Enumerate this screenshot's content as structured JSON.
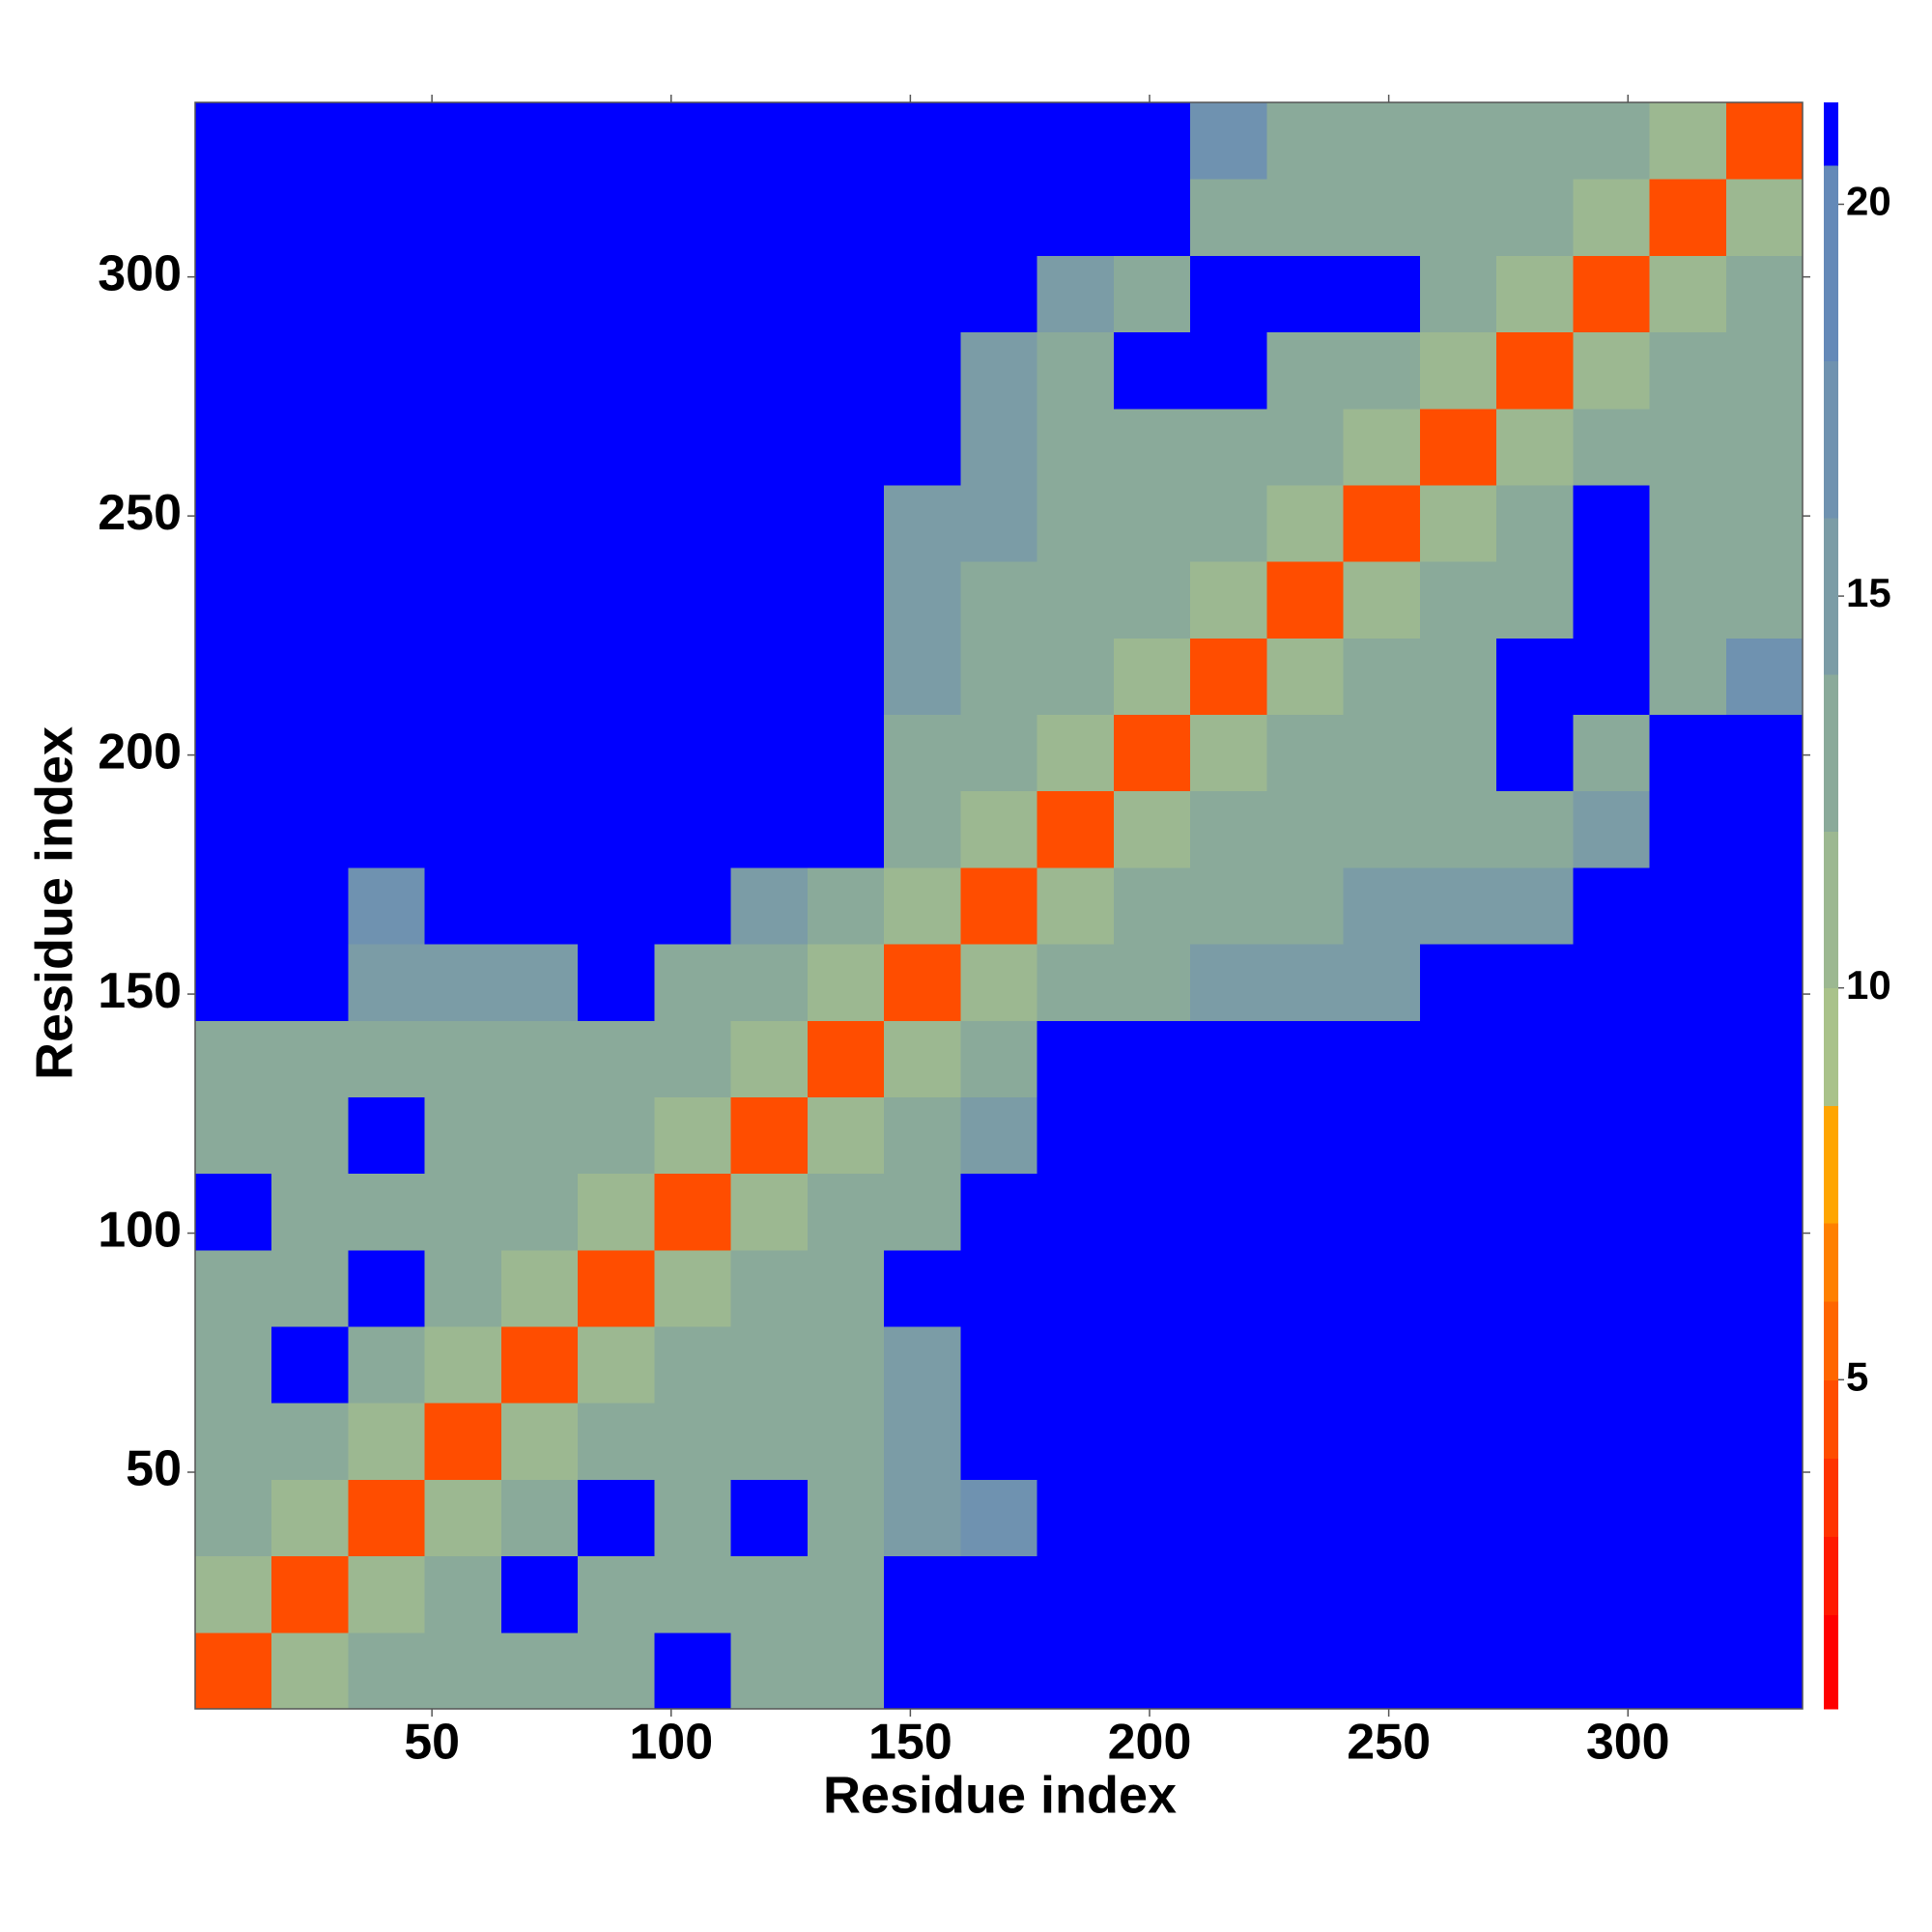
{
  "chart_data": {
    "type": "heatmap",
    "xlabel": "Residue index",
    "ylabel": "Residue index",
    "xlim": [
      0.5,
      336.5
    ],
    "ylim": [
      0.5,
      336.5
    ],
    "xticks": [
      50,
      100,
      150,
      200,
      250,
      300
    ],
    "yticks": [
      50,
      100,
      150,
      200,
      250,
      300
    ],
    "x_bins": [
      0.5,
      16.5,
      32.5,
      48.5,
      64.5,
      80.5,
      96.5,
      112.5,
      128.5,
      144.5,
      160.5,
      176.5,
      192.5,
      208.5,
      224.5,
      240.5,
      256.5,
      272.5,
      288.5,
      304.5,
      320.5,
      336.5
    ],
    "y_bins": [
      0.5,
      16.5,
      32.5,
      48.5,
      64.5,
      80.5,
      96.5,
      112.5,
      128.5,
      144.5,
      160.5,
      176.5,
      192.5,
      208.5,
      224.5,
      240.5,
      256.5,
      272.5,
      288.5,
      304.5,
      320.5,
      336.5
    ],
    "z": [
      [
        4,
        10,
        13,
        13,
        13,
        13,
        21,
        13,
        13,
        21,
        21,
        21,
        21,
        21,
        21,
        21,
        21,
        21,
        21,
        21,
        21
      ],
      [
        10,
        4,
        10,
        13,
        21,
        13,
        13,
        13,
        13,
        21,
        21,
        21,
        21,
        21,
        21,
        21,
        21,
        21,
        21,
        21,
        21
      ],
      [
        13,
        10,
        4,
        10,
        13,
        21,
        13,
        21,
        13,
        14,
        17,
        21,
        21,
        21,
        21,
        21,
        21,
        21,
        21,
        21,
        21
      ],
      [
        13,
        13,
        10,
        4,
        10,
        13,
        13,
        13,
        13,
        14,
        21,
        21,
        21,
        21,
        21,
        21,
        21,
        21,
        21,
        21,
        21
      ],
      [
        13,
        21,
        13,
        10,
        4,
        10,
        13,
        13,
        13,
        14,
        21,
        21,
        21,
        21,
        21,
        21,
        21,
        21,
        21,
        21,
        21
      ],
      [
        13,
        13,
        21,
        13,
        10,
        4,
        10,
        13,
        13,
        21,
        21,
        21,
        21,
        21,
        21,
        21,
        21,
        21,
        21,
        21,
        21
      ],
      [
        21,
        13,
        13,
        13,
        13,
        10,
        4,
        10,
        13,
        13,
        21,
        21,
        21,
        21,
        21,
        21,
        21,
        21,
        21,
        21,
        21
      ],
      [
        13,
        13,
        21,
        13,
        13,
        13,
        10,
        4,
        10,
        13,
        14,
        21,
        21,
        21,
        21,
        21,
        21,
        21,
        21,
        21,
        21
      ],
      [
        13,
        13,
        13,
        13,
        13,
        13,
        13,
        10,
        4,
        10,
        13,
        21,
        21,
        21,
        21,
        21,
        21,
        21,
        21,
        21,
        21
      ],
      [
        21,
        21,
        14,
        14,
        14,
        21,
        13,
        13,
        10,
        4,
        10,
        13,
        13,
        15,
        15,
        15,
        21,
        21,
        21,
        21,
        21
      ],
      [
        21,
        21,
        17,
        21,
        21,
        21,
        21,
        14,
        13,
        10,
        4,
        10,
        13,
        13,
        13,
        15,
        14,
        14,
        21,
        21,
        21
      ],
      [
        21,
        21,
        21,
        21,
        21,
        21,
        21,
        21,
        21,
        13,
        10,
        4,
        10,
        13,
        13,
        13,
        13,
        13,
        15,
        21,
        21
      ],
      [
        21,
        21,
        21,
        21,
        21,
        21,
        21,
        21,
        21,
        13,
        13,
        10,
        4,
        10,
        13,
        13,
        13,
        21,
        13,
        21,
        21
      ],
      [
        21,
        21,
        21,
        21,
        21,
        21,
        21,
        21,
        21,
        15,
        13,
        13,
        10,
        4,
        10,
        13,
        13,
        21,
        21,
        13,
        17
      ],
      [
        21,
        21,
        21,
        21,
        21,
        21,
        21,
        21,
        21,
        15,
        13,
        13,
        13,
        10,
        4,
        10,
        13,
        13,
        21,
        13,
        13
      ],
      [
        21,
        21,
        21,
        21,
        21,
        21,
        21,
        21,
        21,
        15,
        15,
        13,
        13,
        13,
        10,
        4,
        10,
        13,
        21,
        13,
        13
      ],
      [
        21,
        21,
        21,
        21,
        21,
        21,
        21,
        21,
        21,
        21,
        14,
        13,
        13,
        13,
        13,
        10,
        4,
        10,
        13,
        13,
        13
      ],
      [
        21,
        21,
        21,
        21,
        21,
        21,
        21,
        21,
        21,
        21,
        14,
        13,
        21,
        21,
        13,
        13,
        10,
        4,
        10,
        13,
        13
      ],
      [
        21,
        21,
        21,
        21,
        21,
        21,
        21,
        21,
        21,
        21,
        21,
        15,
        13,
        21,
        21,
        21,
        13,
        10,
        4,
        10,
        13
      ],
      [
        21,
        21,
        21,
        21,
        21,
        21,
        21,
        21,
        21,
        21,
        21,
        21,
        21,
        13,
        13,
        13,
        13,
        13,
        10,
        4,
        10
      ],
      [
        21,
        21,
        21,
        21,
        21,
        21,
        21,
        21,
        21,
        21,
        21,
        21,
        21,
        17,
        13,
        13,
        13,
        13,
        13,
        10,
        4
      ]
    ],
    "colorbar": {
      "lim": [
        0.8,
        21.3
      ],
      "ticks": [
        5,
        10,
        15,
        20
      ],
      "levels": [
        2,
        3,
        4,
        5,
        6,
        7,
        8.5,
        10,
        12,
        14,
        16,
        18,
        20.5
      ],
      "colors": [
        "#ff0000",
        "#ff1a00",
        "#ff3300",
        "#ff4d00",
        "#ff6600",
        "#ff8000",
        "#ffa500",
        "#a9c28a",
        "#9cb891",
        "#8aaa9a",
        "#7b9ca6",
        "#6f92b0",
        "#6489b8",
        "#0000ff"
      ]
    }
  }
}
